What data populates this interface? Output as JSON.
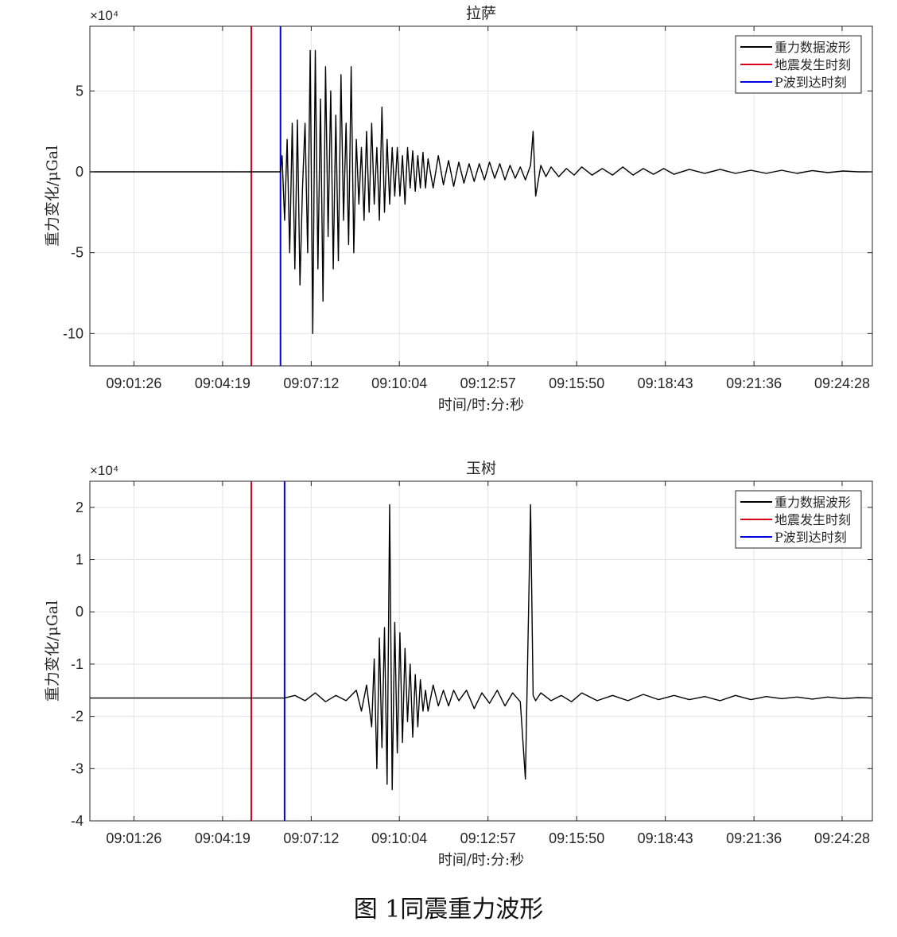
{
  "figure_caption": "图 1同震重力波形",
  "colors": {
    "waveform": "#000000",
    "quake": "#d9001b",
    "p_arrival": "#0000e0",
    "grid": "#e3e3e3",
    "axis": "#262626"
  },
  "chart_data": [
    {
      "type": "line",
      "title": "拉萨",
      "xlabel": "时间/时:分:秒",
      "ylabel": "重力变化/μGal",
      "y_multiplier": "×10⁴",
      "ylim": [
        -12,
        9
      ],
      "yticks": [
        -10,
        -5,
        0,
        5
      ],
      "ytick_labels": [
        "-10",
        "-5",
        "0",
        "5"
      ],
      "xticks": [
        "09:01:26",
        "09:04:19",
        "09:07:12",
        "09:10:04",
        "09:12:57",
        "09:15:50",
        "09:18:43",
        "09:21:36",
        "09:24:28"
      ],
      "xlim": [
        "09:00:00",
        "09:25:27"
      ],
      "grid": true,
      "legend_position": "top-right",
      "quake_time": "09:05:15",
      "p_arrival_time": "09:06:12",
      "series": [
        {
          "name": "重力数据波形",
          "x": [
            "09:00:00",
            "09:06:12",
            "09:06:15",
            "09:06:20",
            "09:06:25",
            "09:06:30",
            "09:06:35",
            "09:06:40",
            "09:06:45",
            "09:06:50",
            "09:06:55",
            "09:07:00",
            "09:07:05",
            "09:07:10",
            "09:07:15",
            "09:07:20",
            "09:07:25",
            "09:07:30",
            "09:07:35",
            "09:07:40",
            "09:07:45",
            "09:07:50",
            "09:07:55",
            "09:08:00",
            "09:08:05",
            "09:08:10",
            "09:08:15",
            "09:08:20",
            "09:08:25",
            "09:08:30",
            "09:08:35",
            "09:08:40",
            "09:08:45",
            "09:08:50",
            "09:08:55",
            "09:09:00",
            "09:09:05",
            "09:09:10",
            "09:09:15",
            "09:09:20",
            "09:09:25",
            "09:09:30",
            "09:09:35",
            "09:09:40",
            "09:09:45",
            "09:09:50",
            "09:09:55",
            "09:10:00",
            "09:10:05",
            "09:10:10",
            "09:10:15",
            "09:10:20",
            "09:10:25",
            "09:10:30",
            "09:10:35",
            "09:10:40",
            "09:10:45",
            "09:10:50",
            "09:10:55",
            "09:11:00",
            "09:11:10",
            "09:11:20",
            "09:11:30",
            "09:11:40",
            "09:11:50",
            "09:12:00",
            "09:12:10",
            "09:12:20",
            "09:12:30",
            "09:12:40",
            "09:12:50",
            "09:13:00",
            "09:13:10",
            "09:13:20",
            "09:13:30",
            "09:13:40",
            "09:13:50",
            "09:14:00",
            "09:14:10",
            "09:14:20",
            "09:14:25",
            "09:14:30",
            "09:14:40",
            "09:14:50",
            "09:15:00",
            "09:15:15",
            "09:15:30",
            "09:15:45",
            "09:16:00",
            "09:16:20",
            "09:16:40",
            "09:17:00",
            "09:17:20",
            "09:17:40",
            "09:18:00",
            "09:18:20",
            "09:18:40",
            "09:19:00",
            "09:19:30",
            "09:20:00",
            "09:20:30",
            "09:21:00",
            "09:21:30",
            "09:22:00",
            "09:22:30",
            "09:23:00",
            "09:23:30",
            "09:24:00",
            "09:24:30",
            "09:25:00",
            "09:25:27"
          ],
          "values": [
            0,
            0,
            1,
            -3,
            2,
            -5,
            3,
            -6,
            3.2,
            -7,
            -1,
            3,
            -5,
            7.5,
            -10,
            7.5,
            -6,
            4.5,
            -8,
            6.5,
            -4,
            5,
            -6,
            3.5,
            -5.5,
            6,
            -3,
            3,
            -4.5,
            6.5,
            -5,
            2,
            -2,
            1.5,
            -3,
            2.5,
            -2.5,
            3,
            -2,
            1.5,
            -3,
            4,
            -2.5,
            2,
            -2,
            1.5,
            -1.5,
            1.5,
            -1.5,
            1,
            -2,
            1.5,
            -1,
            1.3,
            -1.2,
            1,
            -1,
            1.2,
            -1,
            0.8,
            -1,
            1,
            -0.8,
            0.7,
            -0.9,
            0.6,
            -0.7,
            0.5,
            -0.6,
            0.5,
            -0.5,
            0.6,
            -0.4,
            0.5,
            -0.5,
            0.4,
            -0.4,
            0.3,
            -0.5,
            0.4,
            2.5,
            -1.5,
            0.4,
            -0.3,
            0.3,
            -0.3,
            0.2,
            -0.2,
            0.3,
            -0.2,
            0.2,
            -0.2,
            0.3,
            -0.2,
            0.2,
            -0.15,
            0.2,
            -0.15,
            0.15,
            -0.1,
            0.15,
            -0.1,
            0.1,
            -0.1,
            0.1,
            -0.1,
            0.08,
            -0.05,
            0.05,
            0,
            0
          ]
        },
        {
          "name": "地震发生时刻"
        },
        {
          "name": "P波到达时刻"
        }
      ]
    },
    {
      "type": "line",
      "title": "玉树",
      "xlabel": "时间/时:分:秒",
      "ylabel": "重力变化/μGal",
      "y_multiplier": "×10⁴",
      "ylim": [
        -4,
        2.5
      ],
      "yticks": [
        -4,
        -3,
        -2,
        -1,
        0,
        1,
        2
      ],
      "ytick_labels": [
        "-4",
        "-3",
        "-2",
        "-1",
        "0",
        "1",
        "2"
      ],
      "xticks": [
        "09:01:26",
        "09:04:19",
        "09:07:12",
        "09:10:04",
        "09:12:57",
        "09:15:50",
        "09:18:43",
        "09:21:36",
        "09:24:28"
      ],
      "xlim": [
        "09:00:00",
        "09:25:27"
      ],
      "grid": true,
      "legend_position": "top-right",
      "quake_time": "09:05:15",
      "p_arrival_time": "09:06:20",
      "series": [
        {
          "name": "重力数据波形",
          "x": [
            "09:00:00",
            "09:06:20",
            "09:06:40",
            "09:07:00",
            "09:07:20",
            "09:07:40",
            "09:08:00",
            "09:08:20",
            "09:08:40",
            "09:08:50",
            "09:09:00",
            "09:09:10",
            "09:09:15",
            "09:09:20",
            "09:09:25",
            "09:09:30",
            "09:09:35",
            "09:09:40",
            "09:09:45",
            "09:09:50",
            "09:09:55",
            "09:10:00",
            "09:10:05",
            "09:10:10",
            "09:10:15",
            "09:10:20",
            "09:10:25",
            "09:10:30",
            "09:10:35",
            "09:10:40",
            "09:10:45",
            "09:10:50",
            "09:10:55",
            "09:11:00",
            "09:11:10",
            "09:11:20",
            "09:11:30",
            "09:11:40",
            "09:11:50",
            "09:12:00",
            "09:12:15",
            "09:12:30",
            "09:12:45",
            "09:13:00",
            "09:13:15",
            "09:13:30",
            "09:13:45",
            "09:14:00",
            "09:14:10",
            "09:14:20",
            "09:14:25",
            "09:14:30",
            "09:14:40",
            "09:15:00",
            "09:15:20",
            "09:15:40",
            "09:16:00",
            "09:16:30",
            "09:17:00",
            "09:17:30",
            "09:18:00",
            "09:18:30",
            "09:19:00",
            "09:19:30",
            "09:20:00",
            "09:20:30",
            "09:21:00",
            "09:21:30",
            "09:22:00",
            "09:22:30",
            "09:23:00",
            "09:23:30",
            "09:24:00",
            "09:24:30",
            "09:25:00",
            "09:25:27"
          ],
          "values": [
            -1.65,
            -1.65,
            -1.6,
            -1.7,
            -1.55,
            -1.72,
            -1.6,
            -1.7,
            -1.5,
            -1.9,
            -1.4,
            -2.2,
            -0.9,
            -3,
            -0.5,
            -2.6,
            -0.3,
            -3.3,
            2.05,
            -3.4,
            -0.2,
            -2.7,
            -0.4,
            -2.5,
            -0.7,
            -2.1,
            -1,
            -2.4,
            -1.2,
            -2.2,
            -1.3,
            -1.9,
            -1.5,
            -1.9,
            -1.4,
            -1.8,
            -1.5,
            -1.8,
            -1.5,
            -1.7,
            -1.5,
            -1.85,
            -1.55,
            -1.75,
            -1.5,
            -1.8,
            -1.55,
            -1.72,
            -3.2,
            2.05,
            -1.6,
            -1.7,
            -1.55,
            -1.7,
            -1.6,
            -1.72,
            -1.55,
            -1.7,
            -1.6,
            -1.7,
            -1.58,
            -1.68,
            -1.6,
            -1.68,
            -1.62,
            -1.7,
            -1.6,
            -1.68,
            -1.62,
            -1.66,
            -1.63,
            -1.67,
            -1.63,
            -1.66,
            -1.64,
            -1.65
          ]
        },
        {
          "name": "地震发生时刻"
        },
        {
          "name": "P波到达时刻"
        }
      ]
    }
  ]
}
